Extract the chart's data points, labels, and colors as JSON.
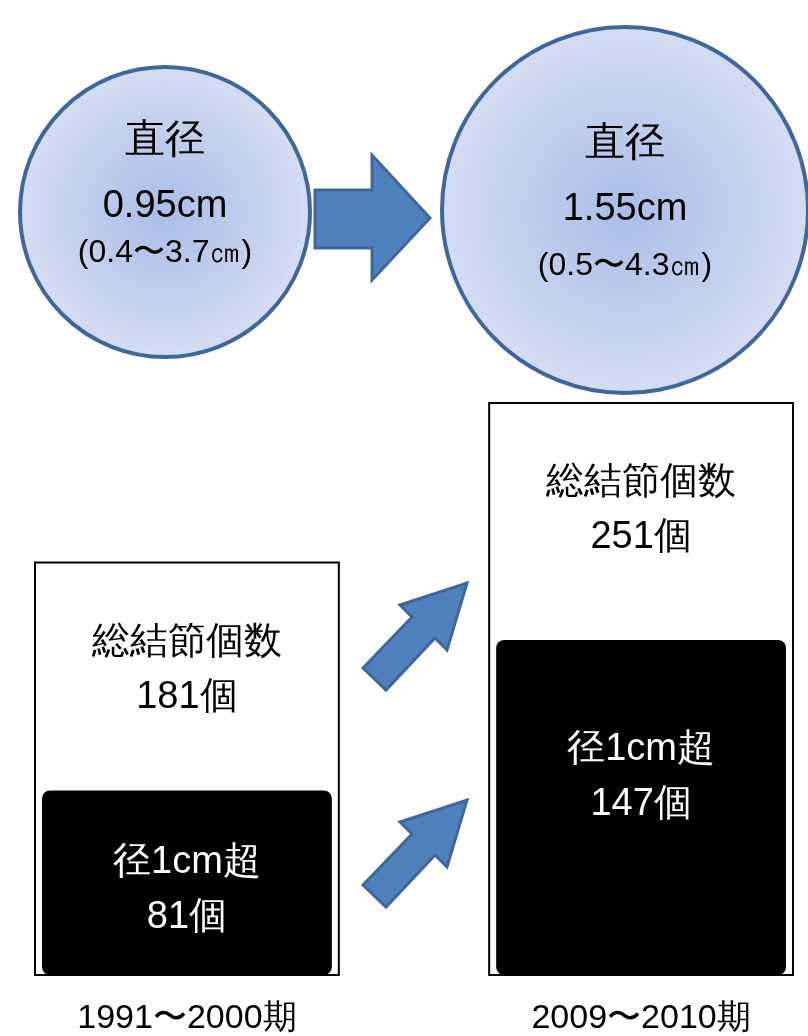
{
  "chart_data": [
    {
      "type": "other",
      "annotations": [
        "直径",
        "0.95cm",
        "(0.4〜3.7㎝)",
        "直径",
        "1.55cm",
        "(0.5〜4.3㎝)"
      ]
    },
    {
      "type": "bar",
      "categories": [
        "1991〜2000期",
        "2009〜2010期"
      ],
      "series": [
        {
          "name": "総結節個数",
          "color": "#ffffff",
          "values": [
            181,
            251
          ],
          "value_labels": [
            "181個",
            "251個"
          ]
        },
        {
          "name": "径1cm超",
          "color": "#000000",
          "values": [
            81,
            147
          ],
          "value_labels": [
            "81個",
            "147個"
          ]
        }
      ]
    }
  ]
}
